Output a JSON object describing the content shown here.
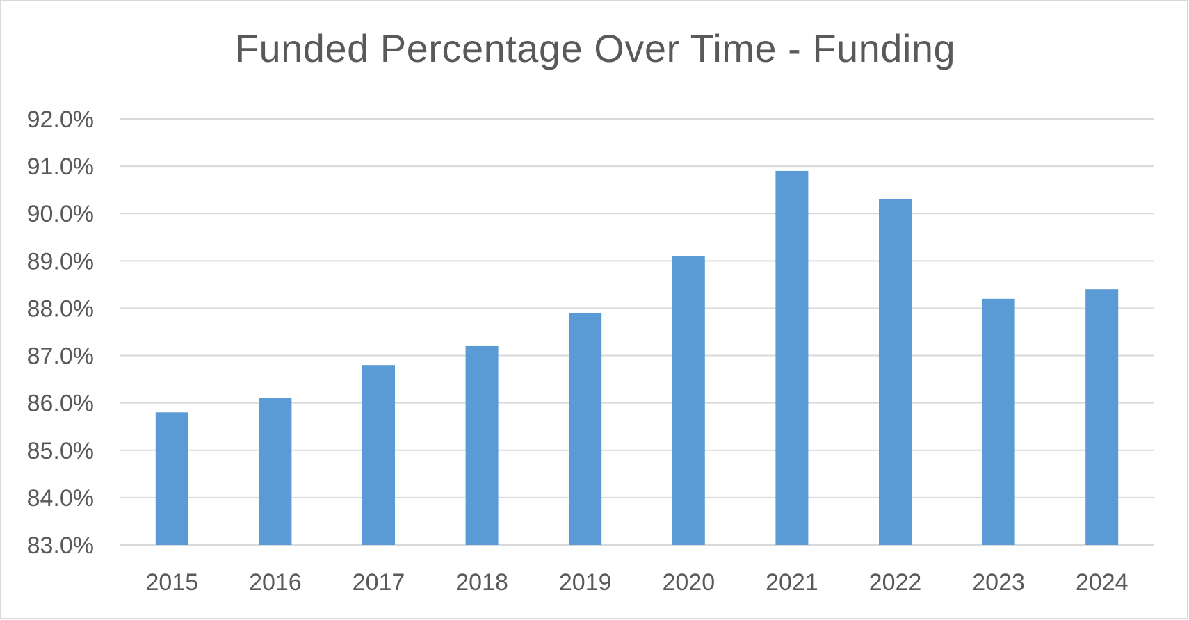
{
  "chart_data": {
    "type": "bar",
    "title": "Funded Percentage Over Time - Funding",
    "xlabel": "",
    "ylabel": "",
    "categories": [
      "2015",
      "2016",
      "2017",
      "2018",
      "2019",
      "2020",
      "2021",
      "2022",
      "2023",
      "2024"
    ],
    "values": [
      85.8,
      86.1,
      86.8,
      87.2,
      87.9,
      89.1,
      90.9,
      90.3,
      88.2,
      88.4
    ],
    "ylim": [
      83.0,
      92.0
    ],
    "y_ticks": [
      83.0,
      84.0,
      85.0,
      86.0,
      87.0,
      88.0,
      89.0,
      90.0,
      91.0,
      92.0
    ],
    "y_tick_labels": [
      "83.0%",
      "84.0%",
      "85.0%",
      "86.0%",
      "87.0%",
      "88.0%",
      "89.0%",
      "90.0%",
      "91.0%",
      "92.0%"
    ],
    "grid": true,
    "legend": "none",
    "bar_color": "#5b9bd5",
    "grid_color": "#d9d9d9",
    "text_color": "#595959"
  }
}
